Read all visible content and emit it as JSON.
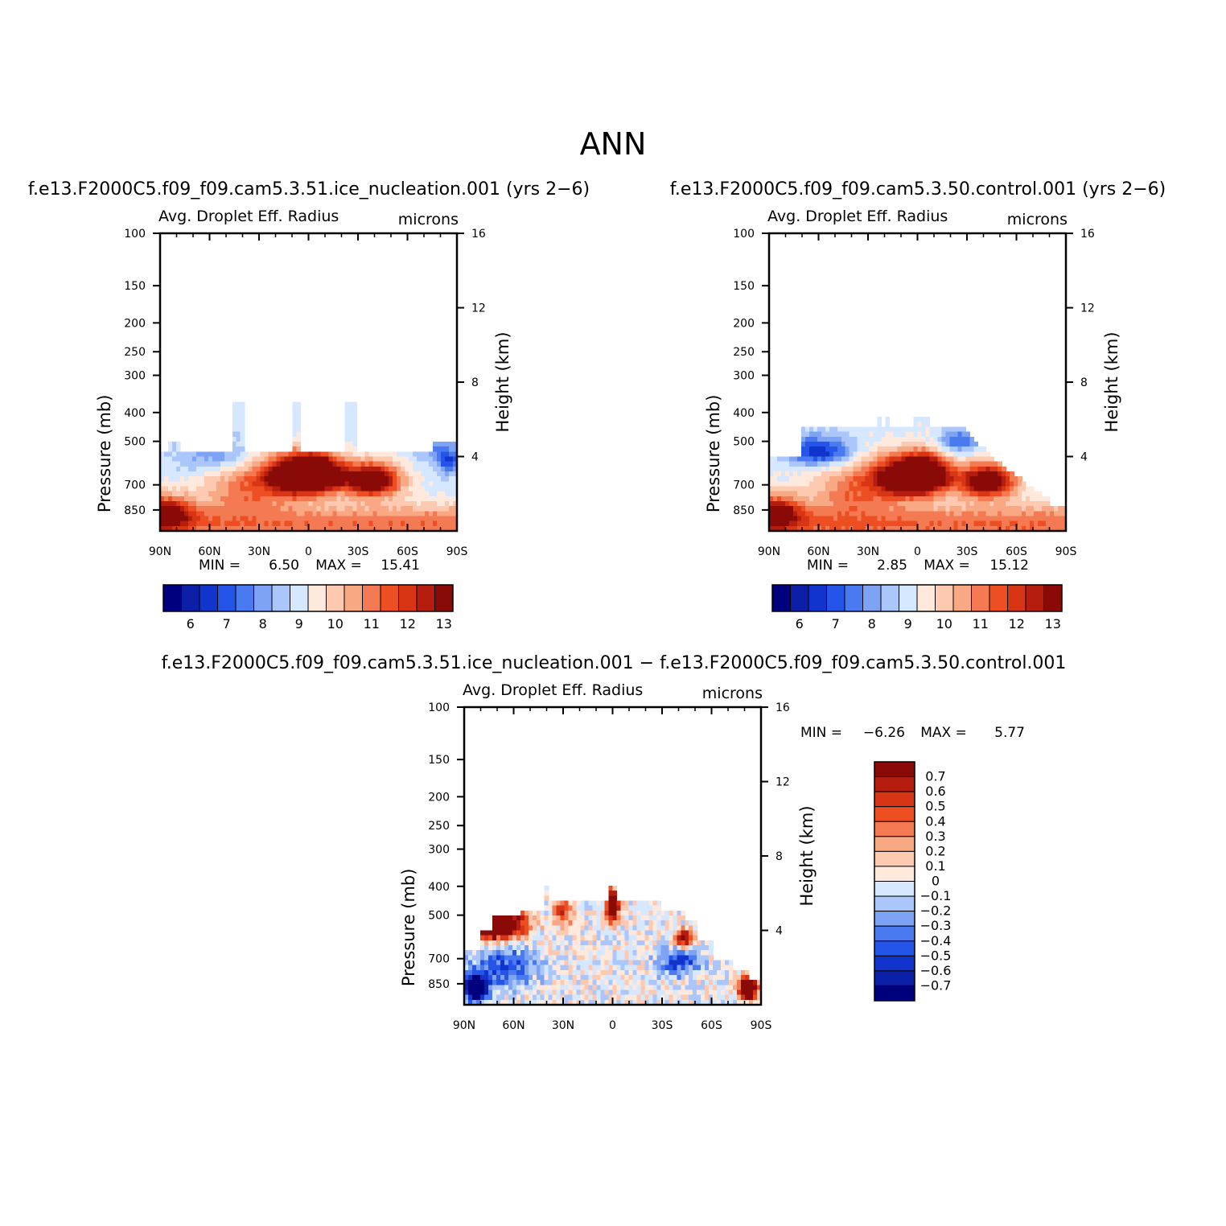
{
  "page_title": "ANN",
  "colors": {
    "absolute_scale": [
      "#00007f",
      "#0a1fa6",
      "#1034cc",
      "#2555e8",
      "#4a7af0",
      "#7ea3f5",
      "#aac6fb",
      "#d6e8ff",
      "#ffe9dc",
      "#fdcab1",
      "#f8a883",
      "#f37a52",
      "#ee4f22",
      "#d73513",
      "#b51e0e",
      "#8a0a08"
    ],
    "difference_scale": [
      "#00007f",
      "#0a1fa6",
      "#1034cc",
      "#2555e8",
      "#4a7af0",
      "#7ea3f5",
      "#aac6fb",
      "#d6e8ff",
      "#ffe9dc",
      "#fdcab1",
      "#f8a883",
      "#f37a52",
      "#ee4f22",
      "#d73513",
      "#b51e0e",
      "#8a0a08"
    ]
  },
  "chart_data": [
    {
      "id": "ice_nucleation",
      "type": "heatmap",
      "title": "f.e13.F2000C5.f09_f09.cam5.3.51.ice_nucleation.001 (yrs 2−6)",
      "variable": "Avg. Droplet Eff. Radius",
      "units": "microns",
      "ylabel": "Pressure (mb)",
      "ylabel_right": "Height (km)",
      "x_ticks": [
        "90N",
        "60N",
        "30N",
        "0",
        "30S",
        "60S",
        "90S"
      ],
      "x_values": [
        90,
        60,
        30,
        0,
        -30,
        -60,
        -90
      ],
      "y_ticks": [
        "100",
        "150",
        "200",
        "250",
        "300",
        "400",
        "500",
        "700",
        "850"
      ],
      "y_values": [
        100,
        150,
        200,
        250,
        300,
        400,
        500,
        700,
        850
      ],
      "y_right_ticks": [
        "16",
        "12",
        "8",
        "4"
      ],
      "y_right_values": [
        16,
        12,
        8,
        4
      ],
      "ylim": [
        1000,
        100
      ],
      "min_label": "MIN =",
      "min_value": "6.50",
      "max_label": "MAX =",
      "max_value": "15.41",
      "colorbar_labels": [
        "6",
        "7",
        "8",
        "9",
        "10",
        "11",
        "12",
        "13"
      ],
      "levels": [
        5.5,
        6,
        6.5,
        7,
        7.5,
        8,
        8.5,
        9,
        9.5,
        10,
        10.5,
        11,
        11.5,
        12,
        12.5,
        13
      ],
      "field": {
        "cloud_top_hpa": 540,
        "tall_columns": [
          [
            47,
            44,
            370
          ],
          [
            43,
            39,
            370
          ],
          [
            10,
            6,
            370
          ],
          [
            -21,
            -30,
            370
          ]
        ],
        "background": 9.2,
        "features": [
          {
            "lat": -5,
            "p": 640,
            "value": 14.6,
            "dlat": 16,
            "dp": 90
          },
          {
            "lat": -38,
            "p": 675,
            "value": 14.4,
            "dlat": 18,
            "dp": 85
          },
          {
            "lat": 10,
            "p": 655,
            "value": 13.6,
            "dlat": 20,
            "dp": 105
          },
          {
            "lat": 85,
            "p": 870,
            "value": 12.8,
            "dlat": 14,
            "dp": 110
          },
          {
            "lat": 40,
            "p": 720,
            "value": 11.0,
            "dlat": 26,
            "dp": 140
          },
          {
            "lat": 55,
            "p": 560,
            "value": 8.0,
            "dlat": 22,
            "dp": 70
          },
          {
            "lat": -85,
            "p": 580,
            "value": 7.0,
            "dlat": 8,
            "dp": 60
          },
          {
            "lat": -72,
            "p": 520,
            "value": 8.4,
            "dlat": 12,
            "dp": 50
          }
        ]
      }
    },
    {
      "id": "control",
      "type": "heatmap",
      "title": "f.e13.F2000C5.f09_f09.cam5.3.50.control.001 (yrs 2−6)",
      "variable": "Avg. Droplet Eff. Radius",
      "units": "microns",
      "ylabel": "Pressure (mb)",
      "ylabel_right": "Height (km)",
      "x_ticks": [
        "90N",
        "60N",
        "30N",
        "0",
        "30S",
        "60S",
        "90S"
      ],
      "x_values": [
        90,
        60,
        30,
        0,
        -30,
        -60,
        -90
      ],
      "y_ticks": [
        "100",
        "150",
        "200",
        "250",
        "300",
        "400",
        "500",
        "700",
        "850"
      ],
      "y_values": [
        100,
        150,
        200,
        250,
        300,
        400,
        500,
        700,
        850
      ],
      "y_right_ticks": [
        "16",
        "12",
        "8",
        "4"
      ],
      "y_right_values": [
        16,
        12,
        8,
        4
      ],
      "ylim": [
        1000,
        100
      ],
      "min_label": "MIN =",
      "min_value": "2.85",
      "max_label": "MAX =",
      "max_value": "15.12",
      "colorbar_labels": [
        "6",
        "7",
        "8",
        "9",
        "10",
        "11",
        "12",
        "13"
      ],
      "levels": [
        5.5,
        6,
        6.5,
        7,
        7.5,
        8,
        8.5,
        9,
        9.5,
        10,
        10.5,
        11,
        11.5,
        12,
        12.5,
        13
      ],
      "field": {
        "cloud_top_hpa": 455,
        "tall_columns": [
          [
            2,
            -8,
            410
          ],
          [
            25,
            22,
            410
          ],
          [
            19,
            16,
            410
          ]
        ],
        "background": 9.3,
        "features": [
          {
            "lat": -5,
            "p": 645,
            "value": 14.6,
            "dlat": 15,
            "dp": 90
          },
          {
            "lat": -42,
            "p": 680,
            "value": 14.4,
            "dlat": 17,
            "dp": 85
          },
          {
            "lat": 10,
            "p": 660,
            "value": 13.6,
            "dlat": 20,
            "dp": 105
          },
          {
            "lat": 85,
            "p": 870,
            "value": 12.8,
            "dlat": 14,
            "dp": 110
          },
          {
            "lat": 40,
            "p": 730,
            "value": 11.0,
            "dlat": 26,
            "dp": 140
          },
          {
            "lat": 60,
            "p": 540,
            "value": 6.5,
            "dlat": 20,
            "dp": 60
          },
          {
            "lat": -25,
            "p": 500,
            "value": 7.4,
            "dlat": 12,
            "dp": 45
          }
        ],
        "south_taper": true
      }
    },
    {
      "id": "difference",
      "type": "heatmap",
      "title": "f.e13.F2000C5.f09_f09.cam5.3.51.ice_nucleation.001 − f.e13.F2000C5.f09_f09.cam5.3.50.control.001",
      "variable": "Avg. Droplet Eff. Radius",
      "units": "microns",
      "ylabel": "Pressure (mb)",
      "ylabel_right": "Height (km)",
      "x_ticks": [
        "90N",
        "60N",
        "30N",
        "0",
        "30S",
        "60S",
        "90S"
      ],
      "x_values": [
        90,
        60,
        30,
        0,
        -30,
        -60,
        -90
      ],
      "y_ticks": [
        "100",
        "150",
        "200",
        "250",
        "300",
        "400",
        "500",
        "700",
        "850"
      ],
      "y_values": [
        100,
        150,
        200,
        250,
        300,
        400,
        500,
        700,
        850
      ],
      "y_right_ticks": [
        "16",
        "12",
        "8",
        "4"
      ],
      "y_right_values": [
        16,
        12,
        8,
        4
      ],
      "ylim": [
        1000,
        100
      ],
      "min_label": "MIN =",
      "min_value": "−6.26",
      "max_label": "MAX =",
      "max_value": "5.77",
      "colorbar_labels": [
        "0.7",
        "0.6",
        "0.5",
        "0.4",
        "0.3",
        "0.2",
        "0.1",
        "0",
        "−0.1",
        "−0.2",
        "−0.3",
        "−0.4",
        "−0.5",
        "−0.6",
        "−0.7"
      ],
      "levels": [
        -0.8,
        -0.7,
        -0.6,
        -0.5,
        -0.4,
        -0.3,
        -0.2,
        -0.1,
        0,
        0.1,
        0.2,
        0.3,
        0.4,
        0.5,
        0.6,
        0.7
      ],
      "field": {
        "background": 0.0
      }
    }
  ]
}
